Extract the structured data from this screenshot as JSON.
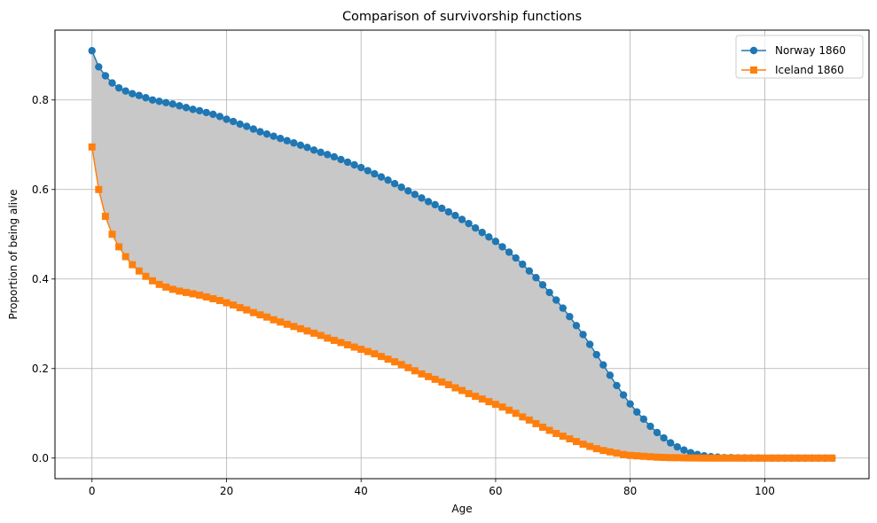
{
  "chart_data": {
    "type": "line",
    "title": "Comparison of survivorship functions",
    "xlabel": "Age",
    "ylabel": "Proportion of being alive",
    "xlim": [
      -5.5,
      115.5
    ],
    "ylim": [
      -0.046,
      0.956
    ],
    "xticks": [
      0,
      20,
      40,
      60,
      80,
      100
    ],
    "yticks": [
      0.0,
      0.2,
      0.4,
      0.6,
      0.8
    ],
    "xtick_labels": [
      "0",
      "20",
      "40",
      "60",
      "80",
      "100"
    ],
    "ytick_labels": [
      "0.0",
      "0.2",
      "0.4",
      "0.6",
      "0.8"
    ],
    "grid": true,
    "legend_position": "top-right",
    "fill_between": {
      "color": "#c8c8c8",
      "series": [
        "Norway 1860",
        "Iceland 1860"
      ]
    },
    "series": [
      {
        "name": "Norway 1860",
        "color": "#1f77b4",
        "marker": "circle",
        "values": [
          0.91,
          0.874,
          0.854,
          0.838,
          0.827,
          0.82,
          0.814,
          0.81,
          0.805,
          0.8,
          0.797,
          0.794,
          0.791,
          0.787,
          0.783,
          0.779,
          0.776,
          0.772,
          0.768,
          0.763,
          0.757,
          0.752,
          0.746,
          0.741,
          0.735,
          0.729,
          0.724,
          0.719,
          0.714,
          0.709,
          0.704,
          0.699,
          0.694,
          0.688,
          0.683,
          0.678,
          0.673,
          0.667,
          0.661,
          0.655,
          0.649,
          0.642,
          0.635,
          0.628,
          0.621,
          0.613,
          0.605,
          0.597,
          0.589,
          0.581,
          0.573,
          0.566,
          0.558,
          0.55,
          0.542,
          0.533,
          0.524,
          0.514,
          0.504,
          0.494,
          0.484,
          0.472,
          0.46,
          0.447,
          0.433,
          0.418,
          0.403,
          0.387,
          0.37,
          0.353,
          0.335,
          0.316,
          0.296,
          0.276,
          0.254,
          0.231,
          0.208,
          0.185,
          0.162,
          0.141,
          0.121,
          0.103,
          0.087,
          0.071,
          0.057,
          0.045,
          0.034,
          0.025,
          0.018,
          0.012,
          0.008,
          0.005,
          0.003,
          0.002,
          0.001,
          0.001,
          0.0005,
          0.0003,
          0.0002,
          0.0001,
          0,
          0,
          0,
          0,
          0,
          0,
          0,
          0,
          0,
          0,
          0
        ]
      },
      {
        "name": "Iceland 1860",
        "color": "#ff7f0e",
        "marker": "square",
        "values": [
          0.695,
          0.6,
          0.54,
          0.5,
          0.472,
          0.45,
          0.432,
          0.418,
          0.406,
          0.396,
          0.388,
          0.382,
          0.377,
          0.373,
          0.37,
          0.367,
          0.364,
          0.36,
          0.356,
          0.352,
          0.347,
          0.342,
          0.336,
          0.331,
          0.325,
          0.32,
          0.315,
          0.309,
          0.304,
          0.299,
          0.294,
          0.289,
          0.284,
          0.279,
          0.274,
          0.268,
          0.263,
          0.258,
          0.253,
          0.248,
          0.243,
          0.238,
          0.233,
          0.227,
          0.221,
          0.215,
          0.209,
          0.202,
          0.195,
          0.188,
          0.182,
          0.176,
          0.17,
          0.164,
          0.157,
          0.151,
          0.144,
          0.138,
          0.132,
          0.126,
          0.12,
          0.114,
          0.107,
          0.1,
          0.092,
          0.085,
          0.077,
          0.069,
          0.062,
          0.055,
          0.049,
          0.043,
          0.037,
          0.031,
          0.026,
          0.021,
          0.017,
          0.014,
          0.011,
          0.008,
          0.006,
          0.005,
          0.004,
          0.003,
          0.002,
          0.0015,
          0.001,
          0.0008,
          0.0005,
          0.0003,
          0.0002,
          0.0001,
          0,
          0,
          0,
          0,
          0,
          0,
          0,
          0,
          0,
          0,
          0,
          0,
          0,
          0,
          0,
          0,
          0,
          0,
          0
        ]
      }
    ]
  }
}
